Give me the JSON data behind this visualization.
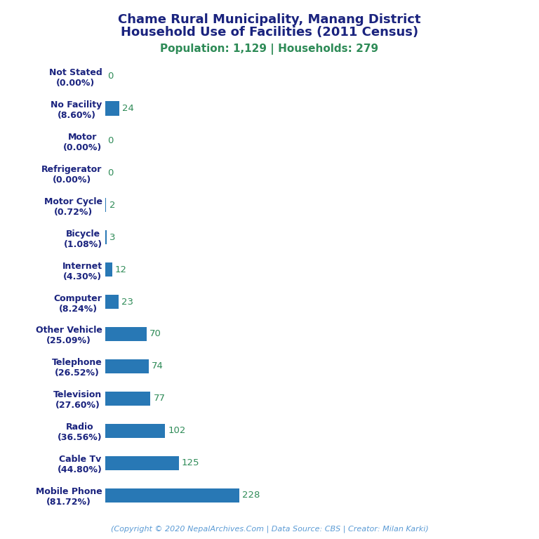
{
  "title_line1": "Chame Rural Municipality, Manang District",
  "title_line2": "Household Use of Facilities (2011 Census)",
  "subtitle": "Population: 1,129 | Households: 279",
  "footer": "(Copyright © 2020 NepalArchives.Com | Data Source: CBS | Creator: Milan Karki)",
  "categories": [
    "Not Stated\n(0.00%)",
    "No Facility\n(8.60%)",
    "Motor\n(0.00%)",
    "Refrigerator\n(0.00%)",
    "Motor Cycle\n(0.72%)",
    "Bicycle\n(1.08%)",
    "Internet\n(4.30%)",
    "Computer\n(8.24%)",
    "Other Vehicle\n(25.09%)",
    "Telephone\n(26.52%)",
    "Television\n(27.60%)",
    "Radio\n(36.56%)",
    "Cable Tv\n(44.80%)",
    "Mobile Phone\n(81.72%)"
  ],
  "values": [
    0,
    24,
    0,
    0,
    2,
    3,
    12,
    23,
    70,
    74,
    77,
    102,
    125,
    228
  ],
  "bar_color": "#2878b5",
  "label_color": "#2e8b57",
  "title_color": "#1a237e",
  "subtitle_color": "#2e8b57",
  "footer_color": "#5b9bd5",
  "background_color": "#ffffff",
  "xlim": [
    0,
    700
  ]
}
